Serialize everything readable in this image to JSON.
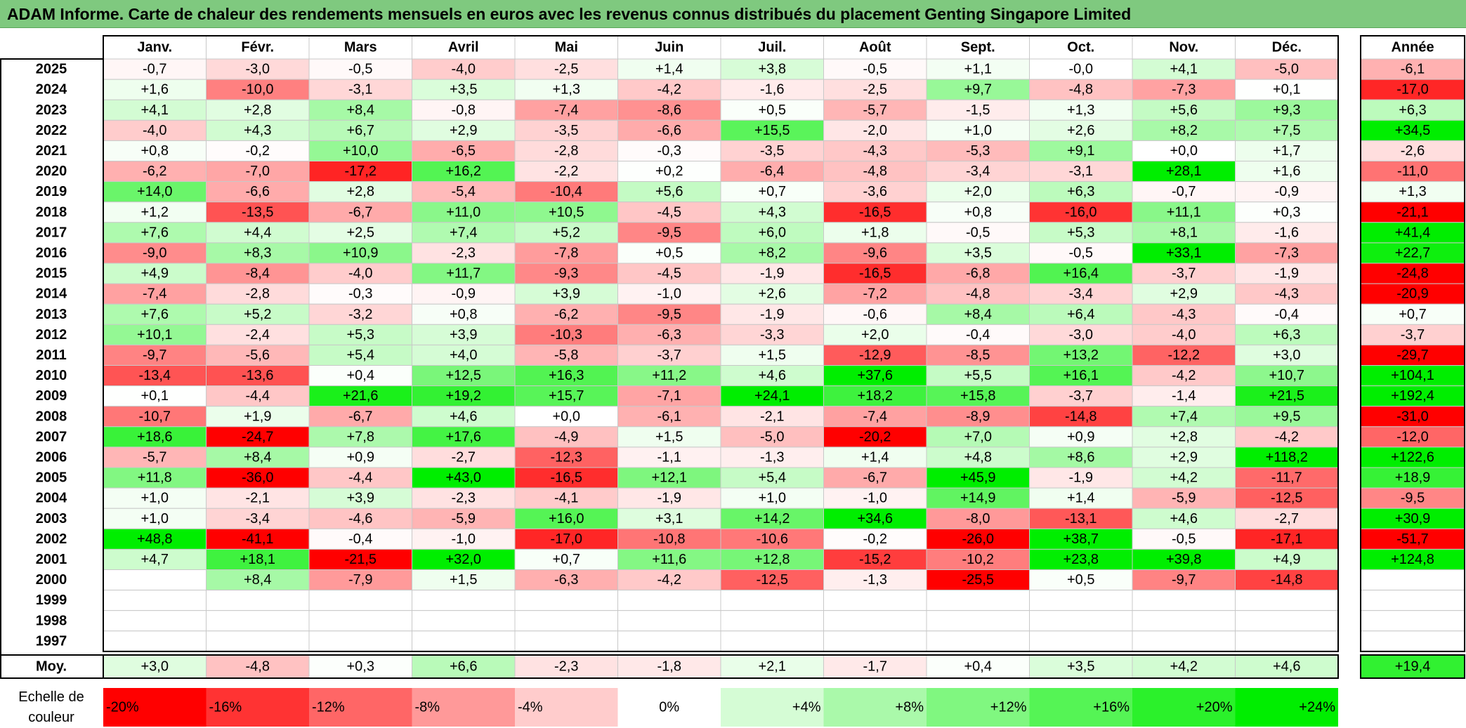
{
  "title": "ADAM Informe. Carte de chaleur des rendements mensuels en euros avec les revenus connus distribués du placement Genting Singapore Limited",
  "chart_data": {
    "type": "heatmap",
    "title": "ADAM Informe. Carte de chaleur des rendements mensuels en euros avec les revenus connus distribués du placement Genting Singapore Limited",
    "months": [
      "Janv.",
      "Févr.",
      "Mars",
      "Avril",
      "Mai",
      "Juin",
      "Juil.",
      "Août",
      "Sept.",
      "Oct.",
      "Nov.",
      "Déc."
    ],
    "year_header": "Année",
    "years": [
      "2025",
      "2024",
      "2023",
      "2022",
      "2021",
      "2020",
      "2019",
      "2018",
      "2017",
      "2016",
      "2015",
      "2014",
      "2013",
      "2012",
      "2011",
      "2010",
      "2009",
      "2008",
      "2007",
      "2006",
      "2005",
      "2004",
      "2003",
      "2002",
      "2001",
      "2000",
      "1999",
      "1998",
      "1997"
    ],
    "values": [
      [
        -0.7,
        -3.0,
        -0.5,
        -4.0,
        -2.5,
        1.4,
        3.8,
        -0.5,
        1.1,
        -0.0,
        4.1,
        -5.0
      ],
      [
        1.6,
        -10.0,
        -3.1,
        3.5,
        1.3,
        -4.2,
        -1.6,
        -2.5,
        9.7,
        -4.8,
        -7.3,
        0.1
      ],
      [
        4.1,
        2.8,
        8.4,
        -0.8,
        -7.4,
        -8.6,
        0.5,
        -5.7,
        -1.5,
        1.3,
        5.6,
        9.3
      ],
      [
        -4.0,
        4.3,
        6.7,
        2.9,
        -3.5,
        -6.6,
        15.5,
        -2.0,
        1.0,
        2.6,
        8.2,
        7.5
      ],
      [
        0.8,
        -0.2,
        10.0,
        -6.5,
        -2.8,
        -0.3,
        -3.5,
        -4.3,
        -5.3,
        9.1,
        0.0,
        1.7
      ],
      [
        -6.2,
        -7.0,
        -17.2,
        16.2,
        -2.2,
        0.2,
        -6.4,
        -4.8,
        -3.4,
        -3.1,
        28.1,
        1.6
      ],
      [
        14.0,
        -6.6,
        2.8,
        -5.4,
        -10.4,
        5.6,
        0.7,
        -3.6,
        2.0,
        6.3,
        -0.7,
        -0.9
      ],
      [
        1.2,
        -13.5,
        -6.7,
        11.0,
        10.5,
        -4.5,
        4.3,
        -16.5,
        0.8,
        -16.0,
        11.1,
        0.3
      ],
      [
        7.6,
        4.4,
        2.5,
        7.4,
        5.2,
        -9.5,
        6.0,
        1.8,
        -0.5,
        5.3,
        8.1,
        -1.6
      ],
      [
        -9.0,
        8.3,
        10.9,
        -2.3,
        -7.8,
        0.5,
        8.2,
        -9.6,
        3.5,
        -0.5,
        33.1,
        -7.3
      ],
      [
        4.9,
        -8.4,
        -4.0,
        11.7,
        -9.3,
        -4.5,
        -1.9,
        -16.5,
        -6.8,
        16.4,
        -3.7,
        -1.9
      ],
      [
        -7.4,
        -2.8,
        -0.3,
        -0.9,
        3.9,
        -1.0,
        2.6,
        -7.2,
        -4.8,
        -3.4,
        2.9,
        -4.3
      ],
      [
        7.6,
        5.2,
        -3.2,
        0.8,
        -6.2,
        -9.5,
        -1.9,
        -0.6,
        8.4,
        6.4,
        -4.3,
        -0.4
      ],
      [
        10.1,
        -2.4,
        5.3,
        3.9,
        -10.3,
        -6.3,
        -3.3,
        2.0,
        -0.4,
        -3.0,
        -4.0,
        6.3
      ],
      [
        -9.7,
        -5.6,
        5.4,
        4.0,
        -5.8,
        -3.7,
        1.5,
        -12.9,
        -8.5,
        13.2,
        -12.2,
        3.0
      ],
      [
        -13.4,
        -13.6,
        0.4,
        12.5,
        16.3,
        11.2,
        4.6,
        37.6,
        5.5,
        16.1,
        -4.2,
        10.7
      ],
      [
        0.1,
        -4.4,
        21.6,
        19.2,
        15.7,
        -7.1,
        24.1,
        18.2,
        15.8,
        -3.7,
        -1.4,
        21.5
      ],
      [
        -10.7,
        1.9,
        -6.7,
        4.6,
        0.0,
        -6.1,
        -2.1,
        -7.4,
        -8.9,
        -14.8,
        7.4,
        9.5
      ],
      [
        18.6,
        -24.7,
        7.8,
        17.6,
        -4.9,
        1.5,
        -5.0,
        -20.2,
        7.0,
        0.9,
        2.8,
        -4.2
      ],
      [
        -5.7,
        8.4,
        0.9,
        -2.7,
        -12.3,
        -1.1,
        -1.3,
        1.4,
        4.8,
        8.6,
        2.9,
        118.2
      ],
      [
        11.8,
        -36.0,
        -4.4,
        43.0,
        -16.5,
        12.1,
        5.4,
        -6.7,
        45.9,
        -1.9,
        4.2,
        -11.7
      ],
      [
        1.0,
        -2.1,
        3.9,
        -2.3,
        -4.1,
        -1.9,
        1.0,
        -1.0,
        14.9,
        1.4,
        -5.9,
        -12.5
      ],
      [
        1.0,
        -3.4,
        -4.6,
        -5.9,
        16.0,
        3.1,
        14.2,
        34.6,
        -8.0,
        -13.1,
        4.6,
        -2.7
      ],
      [
        48.8,
        -41.1,
        -0.4,
        -1.0,
        -17.0,
        -10.8,
        -10.6,
        -0.2,
        -26.0,
        38.7,
        -0.5,
        -17.1
      ],
      [
        4.7,
        18.1,
        -21.5,
        32.0,
        0.7,
        11.6,
        12.8,
        -15.2,
        -10.2,
        23.8,
        39.8,
        4.9
      ],
      [
        null,
        8.4,
        -7.9,
        1.5,
        -6.3,
        -4.2,
        -12.5,
        -1.3,
        -25.5,
        0.5,
        -9.7,
        -14.8
      ],
      [
        null,
        null,
        null,
        null,
        null,
        null,
        null,
        null,
        null,
        null,
        null,
        null
      ],
      [
        null,
        null,
        null,
        null,
        null,
        null,
        null,
        null,
        null,
        null,
        null,
        null
      ],
      [
        null,
        null,
        null,
        null,
        null,
        null,
        null,
        null,
        null,
        null,
        null,
        null
      ]
    ],
    "annual": [
      -6.1,
      -17.0,
      6.3,
      34.5,
      -2.6,
      -11.0,
      1.3,
      -21.1,
      41.4,
      22.7,
      -24.8,
      -20.9,
      0.7,
      -3.7,
      -29.7,
      104.1,
      192.4,
      -31.0,
      -12.0,
      122.6,
      18.9,
      -9.5,
      30.9,
      -51.7,
      124.8,
      null,
      null,
      null,
      null
    ],
    "average_label": "Moy.",
    "averages": [
      3.0,
      -4.8,
      0.3,
      6.6,
      -2.3,
      -1.8,
      2.1,
      -1.7,
      0.4,
      3.5,
      4.2,
      4.6
    ],
    "average_annual": 19.4,
    "scale_label": [
      "Echelle de",
      "couleur"
    ],
    "scale_labels": [
      "-20%",
      "-16%",
      "-12%",
      "-8%",
      "-4%",
      "0%",
      "+4%",
      "+8%",
      "+12%",
      "+16%",
      "+20%",
      "+24%"
    ],
    "scale_values": [
      -20,
      -16,
      -12,
      -8,
      -4,
      0,
      4,
      8,
      12,
      16,
      20,
      24
    ],
    "colors": {
      "negative": "#ff0000",
      "positive": "#00ee00",
      "neutral": "#ffffff",
      "title_bg": "#7fc97f"
    }
  }
}
